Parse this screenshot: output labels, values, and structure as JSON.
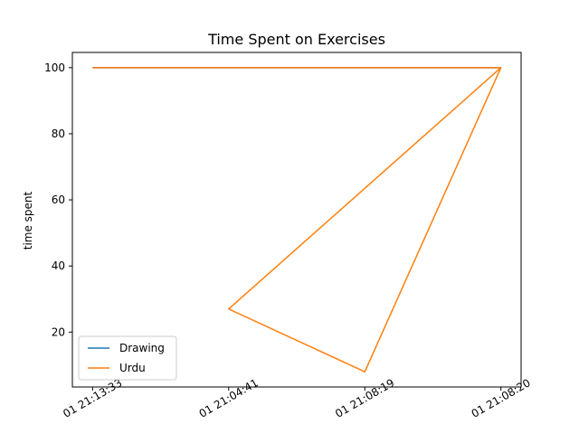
{
  "chart_data": {
    "type": "line",
    "title": "Time Spent on Exercises",
    "xlabel": "",
    "ylabel": "time spent",
    "categories": [
      "01 21:13:33",
      "01 21:04:41",
      "01 21:08:19",
      "01 21:08:20"
    ],
    "ylim": [
      3.4,
      104.6
    ],
    "yticks": [
      20,
      40,
      60,
      80,
      100
    ],
    "grid": false,
    "legend_position": "lower-left",
    "series": [
      {
        "name": "Drawing",
        "color": "#1f77b4",
        "points": [
          [
            0,
            100
          ],
          [
            3,
            100
          ]
        ]
      },
      {
        "name": "Urdu",
        "color": "#ff7f0e",
        "points": [
          [
            0,
            100
          ],
          [
            3,
            100
          ],
          [
            1,
            27
          ],
          [
            2,
            8
          ],
          [
            3,
            100
          ]
        ]
      }
    ]
  }
}
